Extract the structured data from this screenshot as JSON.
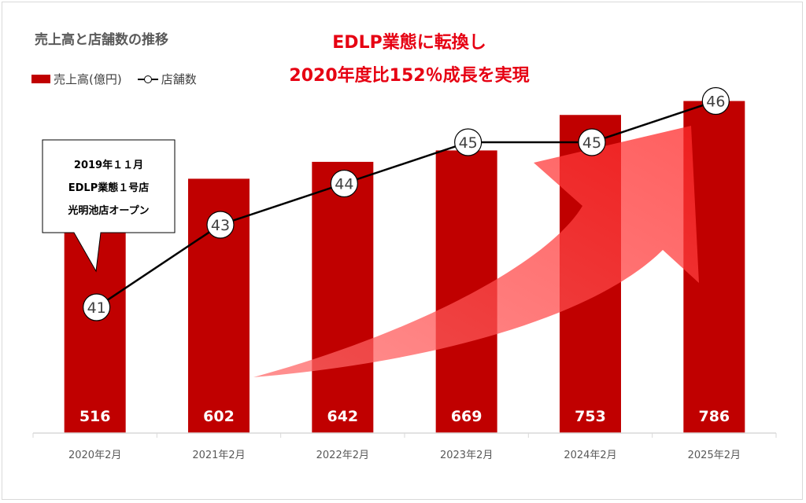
{
  "chart_title": "売上高と店舗数の推移",
  "headline": {
    "line1": "EDLP業態に転換し",
    "line2": "2020年度比152％成長を実現"
  },
  "legend": {
    "sales_label": "売上高(億円)",
    "stores_label": "店舗数"
  },
  "callout": {
    "line1": "2019年１１月",
    "line2": "EDLP業態１号店",
    "line3": "光明池店オープン"
  },
  "colors": {
    "bar": "#c00000",
    "headline": "#e60012",
    "arrow": "#ff3b3b",
    "line": "#000000"
  },
  "chart_data": {
    "type": "bar",
    "categories": [
      "2020年2月",
      "2021年2月",
      "2022年2月",
      "2023年2月",
      "2024年2月",
      "2025年2月"
    ],
    "series": [
      {
        "name": "売上高(億円)",
        "type": "bar",
        "values": [
          516,
          602,
          642,
          669,
          753,
          786
        ]
      },
      {
        "name": "店舗数",
        "type": "line",
        "values": [
          41,
          43,
          44,
          45,
          45,
          46
        ]
      }
    ],
    "legend_position": "top-left",
    "grid": false
  }
}
